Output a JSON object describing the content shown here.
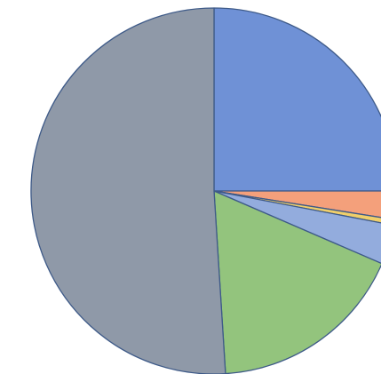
{
  "chart_data": {
    "type": "pie",
    "slices": [
      {
        "value": 25.0,
        "color": "#6f91d6"
      },
      {
        "value": 2.5,
        "color": "#f4a07b"
      },
      {
        "value": 0.5,
        "color": "#f0cf6a"
      },
      {
        "value": 3.5,
        "color": "#93acdd"
      },
      {
        "value": 17.5,
        "color": "#93c47d"
      },
      {
        "value": 51.0,
        "color": "#8f99a8"
      }
    ],
    "start_angle_deg": 0,
    "direction": "clockwise",
    "slice_border_color": "#3e5a88",
    "legend": "none",
    "data_labels": "none"
  }
}
